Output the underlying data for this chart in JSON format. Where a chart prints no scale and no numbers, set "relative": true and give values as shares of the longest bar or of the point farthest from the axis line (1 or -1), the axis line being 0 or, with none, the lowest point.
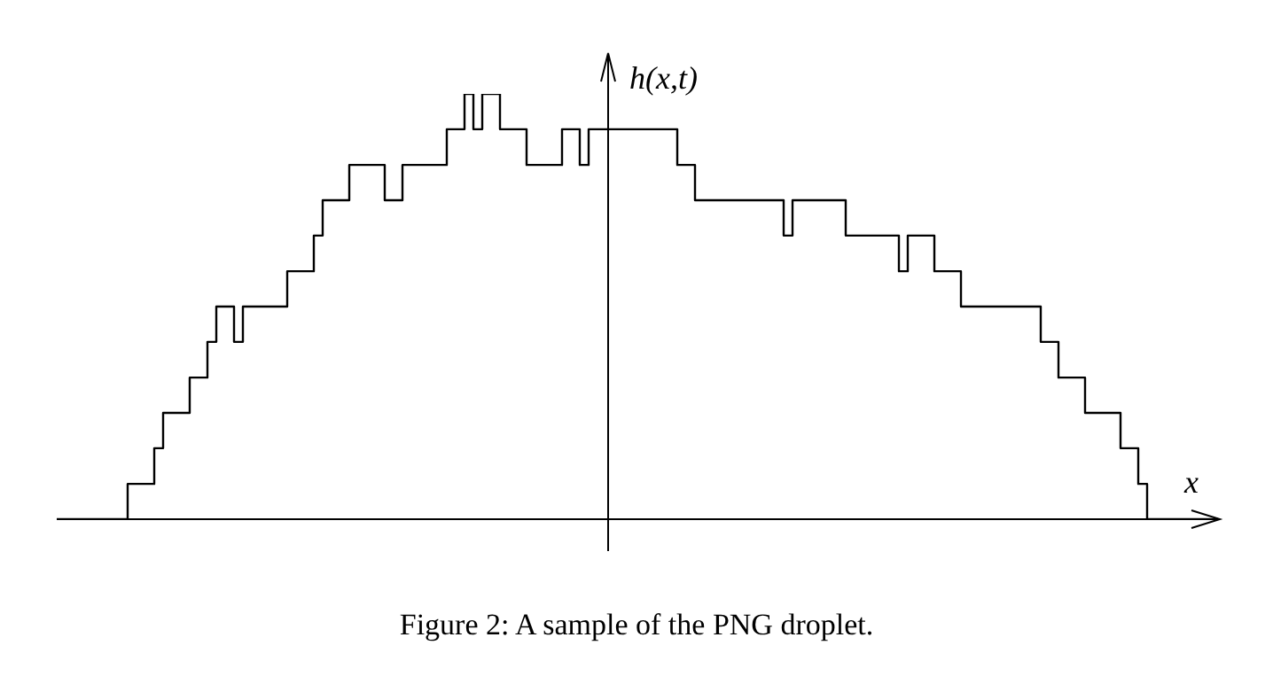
{
  "chart_data": {
    "type": "step",
    "relative": true,
    "xlabel": "x",
    "ylabel": "h(x,t)",
    "annotations": [
      "Figure 2: A sample of the PNG droplet."
    ],
    "categories": [
      null,
      null,
      null,
      null,
      null,
      null,
      null,
      null,
      null,
      null,
      null,
      null,
      null,
      null,
      null,
      null,
      null,
      null,
      null,
      null,
      null,
      null,
      null,
      null,
      null,
      null,
      null,
      null,
      null,
      null,
      null,
      null,
      null,
      null,
      null,
      null,
      null,
      null,
      null,
      null,
      null,
      null,
      null,
      null,
      null,
      null,
      null,
      null,
      null,
      null,
      null,
      null,
      null,
      null,
      null,
      null,
      null,
      null,
      null,
      null,
      null,
      null,
      null,
      null,
      null,
      null,
      null,
      null,
      null,
      null,
      null,
      null,
      null,
      null,
      null,
      null,
      null,
      null,
      null,
      null,
      null,
      null,
      null,
      null,
      null,
      null,
      null,
      null,
      null,
      null,
      null,
      null,
      null,
      null,
      null,
      null,
      null,
      null,
      null,
      null,
      null,
      null,
      null,
      null,
      null,
      null,
      null,
      null,
      null,
      null,
      null,
      null,
      null,
      null,
      null,
      null,
      null,
      null,
      null,
      null,
      null,
      null,
      null,
      null,
      null,
      null,
      null,
      null,
      null,
      null,
      null,
      null
    ],
    "series": [
      {
        "color": "#000000",
        "values": [
          0,
          0,
          0,
          0,
          0,
          0,
          0,
          0,
          0.083,
          0.083,
          0.083,
          0.167,
          0.25,
          0.25,
          0.25,
          0.333,
          0.333,
          0.417,
          0.5,
          0.5,
          0.417,
          0.5,
          0.5,
          0.5,
          0.5,
          0.5,
          0.583,
          0.583,
          0.583,
          0.667,
          0.75,
          0.75,
          0.75,
          0.833,
          0.833,
          0.833,
          0.833,
          0.75,
          0.75,
          0.833,
          0.833,
          0.833,
          0.833,
          0.833,
          0.917,
          0.917,
          1,
          0.917,
          1,
          1,
          0.917,
          0.917,
          0.917,
          0.833,
          0.833,
          0.833,
          0.833,
          0.917,
          0.917,
          0.833,
          0.917,
          0.917,
          0.917,
          0.917,
          0.917,
          0.917,
          0.917,
          0.917,
          0.917,
          0.917,
          0.833,
          0.833,
          0.75,
          0.75,
          0.75,
          0.75,
          0.75,
          0.75,
          0.75,
          0.75,
          0.75,
          0.75,
          0.667,
          0.75,
          0.75,
          0.75,
          0.75,
          0.75,
          0.75,
          0.667,
          0.667,
          0.667,
          0.667,
          0.667,
          0.667,
          0.583,
          0.667,
          0.667,
          0.667,
          0.583,
          0.583,
          0.583,
          0.5,
          0.5,
          0.5,
          0.5,
          0.5,
          0.5,
          0.5,
          0.5,
          0.5,
          0.417,
          0.417,
          0.333,
          0.333,
          0.333,
          0.25,
          0.25,
          0.25,
          0.25,
          0.167,
          0.167,
          0.083,
          0,
          0,
          0,
          0,
          0,
          0,
          0,
          0,
          0
        ]
      }
    ],
    "grid": false,
    "legend": false,
    "marker": "none",
    "line_style": "solid"
  }
}
